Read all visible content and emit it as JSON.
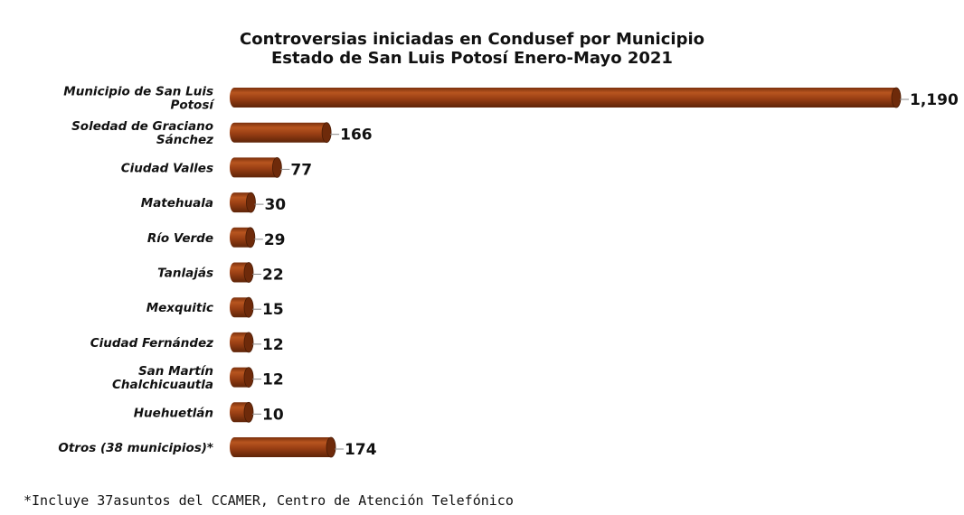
{
  "chart_data": {
    "type": "bar",
    "orientation": "horizontal",
    "title": [
      "Controversias iniciadas en Condusef por Municipio",
      "Estado de San Luis Potosí Enero-Mayo 2021"
    ],
    "categories": [
      [
        "Municipio de San Luis",
        "Potosí"
      ],
      [
        "Soledad de Graciano",
        "Sánchez"
      ],
      [
        "Ciudad Valles"
      ],
      [
        "Matehuala"
      ],
      [
        "Río Verde"
      ],
      [
        "Tanlajás"
      ],
      [
        "Mexquitic"
      ],
      [
        "Ciudad Fernández"
      ],
      [
        "San Martín",
        "Chalchicuautla"
      ],
      [
        "Huehuetlán"
      ],
      [
        "Otros (38 municipios)*"
      ]
    ],
    "values": [
      1190,
      166,
      77,
      30,
      29,
      22,
      15,
      12,
      12,
      10,
      174
    ],
    "value_labels": [
      "1,190",
      "166",
      "77",
      "30",
      "29",
      "22",
      "15",
      "12",
      "12",
      "10",
      "174"
    ],
    "xlim": [
      0,
      1190
    ],
    "grid": false,
    "bar_color": "#9a3f14",
    "bar_highlight": "#b8551f",
    "bar_shadow": "#6e2a0a",
    "footnote": "*Incluye 37asuntos del CCAMER, Centro de Atención Telefónico"
  }
}
